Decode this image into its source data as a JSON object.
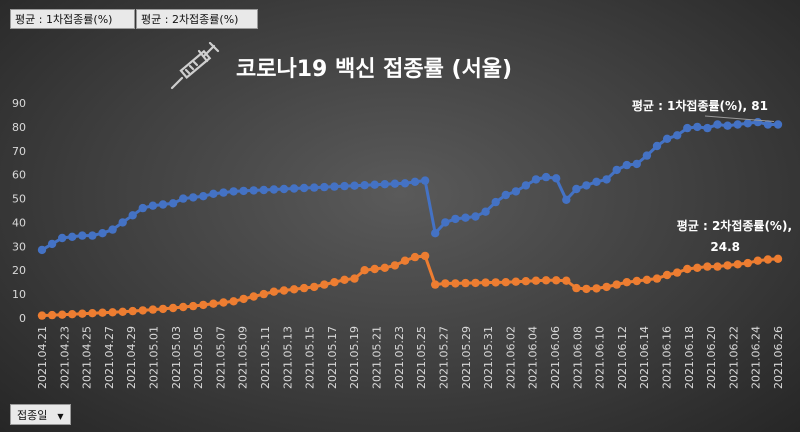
{
  "filters": [
    {
      "label": "평균 : 1차접종률(%)"
    },
    {
      "label": "평균 : 2차접종률(%)"
    }
  ],
  "axis_field": {
    "label": "접종일"
  },
  "chart_data": {
    "type": "line",
    "title": "코로나19 백신 접종률 (서울)",
    "ylim": [
      0,
      90
    ],
    "y_ticks": [
      0,
      10,
      20,
      30,
      40,
      50,
      60,
      70,
      80,
      90
    ],
    "x_tick_labels": [
      "2021.04.21",
      "2021.04.23",
      "2021.04.25",
      "2021.04.27",
      "2021.04.29",
      "2021.05.01",
      "2021.05.03",
      "2021.05.05",
      "2021.05.07",
      "2021.05.09",
      "2021.05.11",
      "2021.05.13",
      "2021.05.15",
      "2021.05.17",
      "2021.05.19",
      "2021.05.21",
      "2021.05.23",
      "2021.05.25",
      "2021.05.27",
      "2021.05.29",
      "2021.05.31",
      "2021.06.02",
      "2021.06.04",
      "2021.06.06",
      "2021.06.08",
      "2021.06.10",
      "2021.06.12",
      "2021.06.14",
      "2021.06.16",
      "2021.06.18",
      "2021.06.20",
      "2021.06.22",
      "2021.06.24",
      "2021.06.26"
    ],
    "grid": false,
    "legend": "none",
    "series": [
      {
        "name": "평균 : 1차접종률(%)",
        "color": "#4472c4",
        "values": [
          28.5,
          31,
          33.5,
          34,
          34.5,
          34.5,
          35.5,
          37,
          40,
          43,
          46,
          47,
          47.5,
          48,
          50,
          50.5,
          51,
          52,
          52.5,
          53,
          53.2,
          53.4,
          53.6,
          53.8,
          54,
          54.2,
          54.4,
          54.6,
          54.8,
          55,
          55.2,
          55.4,
          55.6,
          55.8,
          56,
          56.2,
          56.4,
          57,
          57.5,
          35.5,
          40,
          41.5,
          42,
          42.5,
          44.5,
          48.5,
          51.5,
          53,
          55.5,
          58,
          59,
          58.5,
          49.5,
          54,
          55.5,
          57,
          58,
          62,
          64,
          64.5,
          68,
          72,
          75,
          76.5,
          79.5,
          80,
          79.5,
          81,
          80.5,
          81,
          81.5,
          82,
          81,
          81
        ]
      },
      {
        "name": "평균 : 2차접종률(%)",
        "color": "#ed7d31",
        "values": [
          1,
          1.2,
          1.4,
          1.6,
          1.8,
          2,
          2.2,
          2.4,
          2.6,
          2.9,
          3.2,
          3.5,
          3.8,
          4.2,
          4.6,
          5,
          5.5,
          6,
          6.5,
          7,
          8,
          9,
          10,
          11,
          11.5,
          12,
          12.5,
          13,
          14,
          15,
          16,
          16.5,
          20,
          20.5,
          21,
          22,
          24,
          25.5,
          26,
          14,
          14.5,
          14.5,
          14.6,
          14.7,
          14.8,
          14.9,
          15,
          15.2,
          15.4,
          15.6,
          15.8,
          15.8,
          15.6,
          12.5,
          12.2,
          12.4,
          13,
          14,
          15,
          15.5,
          16,
          16.5,
          18,
          19,
          20.5,
          21,
          21.5,
          21.5,
          22,
          22.5,
          23,
          24,
          24.5,
          24.8
        ]
      }
    ],
    "annotations": [
      {
        "series": 0,
        "text": "평균 : 1차접종률(%), 81"
      },
      {
        "series": 1,
        "line1": "평균 : 2차접종률(%),",
        "line2": "24.8"
      }
    ]
  }
}
